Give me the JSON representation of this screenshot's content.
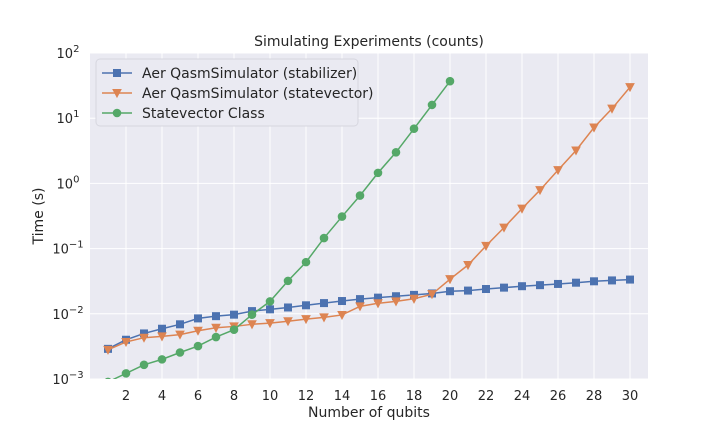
{
  "chart_data": {
    "type": "line",
    "title": "Simulating Experiments (counts)",
    "xlabel": "Number of qubits",
    "ylabel": "Time (s)",
    "yscale": "log",
    "xlim": [
      0,
      31
    ],
    "ylim": [
      0.001,
      100
    ],
    "xticks": [
      "2",
      "4",
      "6",
      "8",
      "10",
      "12",
      "14",
      "16",
      "18",
      "20",
      "22",
      "24",
      "26",
      "28",
      "30"
    ],
    "ytick_exponents": [
      "-3",
      "-2",
      "-1",
      "0",
      "1",
      "2"
    ],
    "ytick_base": "10",
    "grid": true,
    "legend_position": "top-left",
    "series": [
      {
        "name": "Aer QasmSimulator (stabilizer)",
        "color": "#4c72b0",
        "marker": "square",
        "x": [
          1,
          2,
          3,
          4,
          5,
          6,
          7,
          8,
          9,
          10,
          11,
          12,
          13,
          14,
          15,
          16,
          17,
          18,
          19,
          20,
          21,
          22,
          23,
          24,
          25,
          26,
          27,
          28,
          29,
          30
        ],
        "y": [
          0.0029,
          0.004,
          0.005,
          0.0059,
          0.0069,
          0.0085,
          0.0092,
          0.0097,
          0.011,
          0.0117,
          0.0125,
          0.0135,
          0.0146,
          0.0157,
          0.0168,
          0.0177,
          0.0186,
          0.0195,
          0.0205,
          0.0222,
          0.0227,
          0.024,
          0.0252,
          0.0265,
          0.0275,
          0.0287,
          0.03,
          0.0315,
          0.0325,
          0.0335
        ]
      },
      {
        "name": "Aer QasmSimulator (statevector)",
        "color": "#dd8452",
        "marker": "triangle-down",
        "x": [
          1,
          2,
          3,
          4,
          5,
          6,
          7,
          8,
          9,
          10,
          11,
          12,
          13,
          14,
          15,
          16,
          17,
          18,
          19,
          20,
          21,
          22,
          23,
          24,
          25,
          26,
          27,
          28,
          29,
          30
        ],
        "y": [
          0.0028,
          0.0037,
          0.0043,
          0.0045,
          0.0048,
          0.0055,
          0.0061,
          0.0064,
          0.0069,
          0.0072,
          0.0077,
          0.0083,
          0.0088,
          0.0096,
          0.013,
          0.0145,
          0.0155,
          0.017,
          0.02,
          0.034,
          0.056,
          0.11,
          0.21,
          0.41,
          0.79,
          1.6,
          3.2,
          7.2,
          14.0,
          30.0
        ]
      },
      {
        "name": "Statevector Class",
        "color": "#55a868",
        "marker": "circle",
        "x": [
          1,
          2,
          3,
          4,
          5,
          6,
          7,
          8,
          9,
          10,
          11,
          12,
          13,
          14,
          15,
          16,
          17,
          18,
          19,
          20
        ],
        "y": [
          0.0009,
          0.00122,
          0.00165,
          0.002,
          0.00255,
          0.0032,
          0.0044,
          0.0057,
          0.0097,
          0.0155,
          0.032,
          0.062,
          0.145,
          0.31,
          0.65,
          1.45,
          3.0,
          6.9,
          16.0,
          37.0
        ]
      }
    ]
  }
}
